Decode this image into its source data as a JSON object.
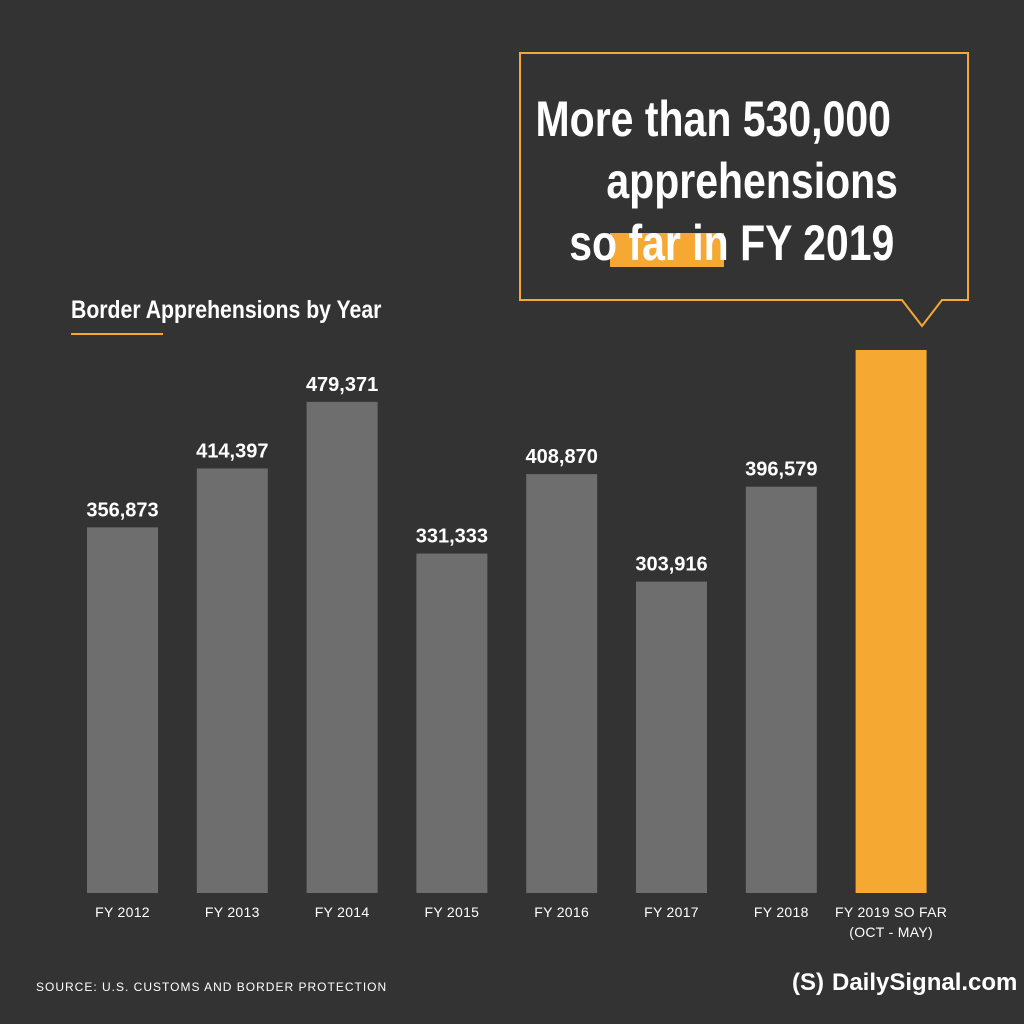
{
  "callout": {
    "line1": "More than 530,000",
    "line2": "apprehensions",
    "highlight": "so far",
    "line3_rest": "in FY 2019"
  },
  "colors": {
    "background": "#333333",
    "bar": "#6e6e6e",
    "accent": "#f5a933",
    "text": "#ffffff"
  },
  "source": "SOURCE: U.S. CUSTOMS AND BORDER PROTECTION",
  "brand": {
    "logo_mark": "(S)",
    "name": "DailySignal.com"
  },
  "chart_data": {
    "type": "bar",
    "title": "Border Apprehensions by Year",
    "categories": [
      "FY 2012",
      "FY 2013",
      "FY 2014",
      "FY 2015",
      "FY 2016",
      "FY 2017",
      "FY 2018",
      "FY 2019 SO FAR"
    ],
    "category_sublabels": [
      "",
      "",
      "",
      "",
      "",
      "",
      "",
      "(OCT - MAY)"
    ],
    "values": [
      356873,
      414397,
      479371,
      331333,
      408870,
      303916,
      396579,
      530000
    ],
    "data_labels": [
      "356,873",
      "414,397",
      "479,371",
      "331,333",
      "408,870",
      "303,916",
      "396,579",
      ""
    ],
    "highlight_index": 7,
    "ylim": [
      0,
      530000
    ],
    "grid": false,
    "xlabel": "",
    "ylabel": ""
  }
}
